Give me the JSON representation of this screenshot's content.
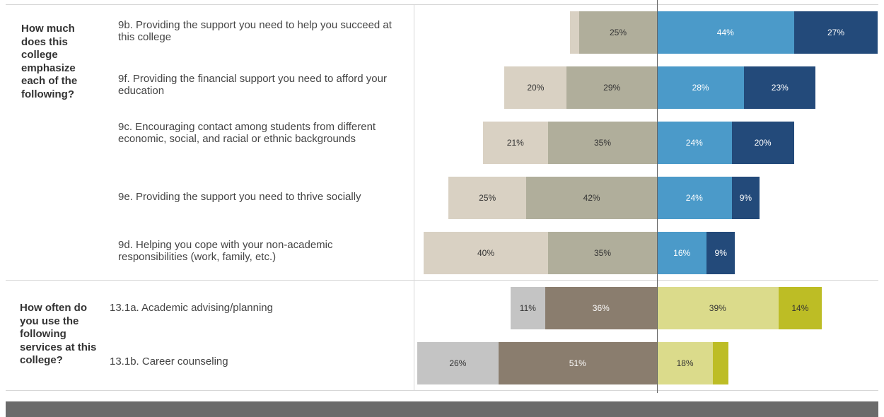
{
  "chart_data": {
    "type": "bar",
    "orientation": "horizontal",
    "stacked": "diverging",
    "groups": [
      {
        "question": "How much does this college emphasize each of the following?",
        "segment_colors": [
          "#d9d1c3",
          "#b0ae9b",
          "#4b9ac9",
          "#234a7a"
        ],
        "segment_text_colors": [
          "#333333",
          "#333333",
          "#ffffff",
          "#ffffff"
        ],
        "items": [
          {
            "label": "9b. Providing the support you need to help you succeed at this college",
            "values": [
              3,
              25,
              44,
              27
            ],
            "value_labels": [
              "",
              "25%",
              "44%",
              "27%"
            ]
          },
          {
            "label": "9f. Providing the financial support you need to afford your education",
            "values": [
              20,
              29,
              28,
              23
            ],
            "value_labels": [
              "20%",
              "29%",
              "28%",
              "23%"
            ]
          },
          {
            "label": "9c. Encouraging contact among students from different economic, social, and racial or ethnic backgrounds",
            "values": [
              21,
              35,
              24,
              20
            ],
            "value_labels": [
              "21%",
              "35%",
              "24%",
              "20%"
            ]
          },
          {
            "label": "9e. Providing the support you need to thrive socially",
            "values": [
              25,
              42,
              24,
              9
            ],
            "value_labels": [
              "25%",
              "42%",
              "24%",
              "9%"
            ]
          },
          {
            "label": "9d. Helping you cope with your non-academic responsibilities (work, family, etc.)",
            "values": [
              40,
              35,
              16,
              9
            ],
            "value_labels": [
              "40%",
              "35%",
              "16%",
              "9%"
            ]
          }
        ]
      },
      {
        "question": "How often do you use the following services at this college?",
        "segment_colors": [
          "#c4c4c4",
          "#8a7d6e",
          "#dbdb8b",
          "#bdbd25"
        ],
        "segment_text_colors": [
          "#333333",
          "#ffffff",
          "#333333",
          "#333333"
        ],
        "items": [
          {
            "label": "13.1a. Academic advising/planning",
            "values": [
              11,
              36,
              39,
              14
            ],
            "value_labels": [
              "11%",
              "36%",
              "39%",
              "14%"
            ]
          },
          {
            "label": "13.1b. Career counseling",
            "values": [
              26,
              51,
              18,
              5
            ],
            "value_labels": [
              "26%",
              "51%",
              "18%",
              ""
            ]
          }
        ]
      }
    ]
  }
}
